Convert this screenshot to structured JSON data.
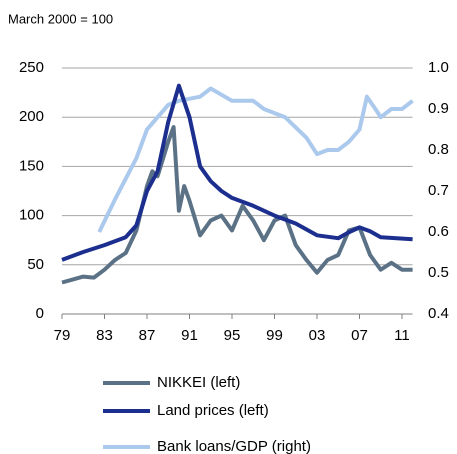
{
  "chart_data": {
    "type": "line",
    "title": "March 2000 = 100",
    "xlim": [
      1979,
      2012
    ],
    "xticks": [
      {
        "value": 1979,
        "label": "79"
      },
      {
        "value": 1983,
        "label": "83"
      },
      {
        "value": 1987,
        "label": "87"
      },
      {
        "value": 1991,
        "label": "91"
      },
      {
        "value": 1995,
        "label": "95"
      },
      {
        "value": 1999,
        "label": "99"
      },
      {
        "value": 2003,
        "label": "03"
      },
      {
        "value": 2007,
        "label": "07"
      },
      {
        "value": 2011,
        "label": "11"
      }
    ],
    "ylim": [
      0,
      250
    ],
    "yticks": [
      0,
      50,
      100,
      150,
      200,
      250
    ],
    "y2lim": [
      0.4,
      1.0
    ],
    "y2ticks": [
      0.4,
      0.5,
      0.6,
      0.7,
      0.8,
      0.9,
      {
        "value": 1.0,
        "label": "1.0"
      }
    ],
    "grid": true,
    "series": [
      {
        "name": "NIKKEI (left)",
        "color": "#5b7286",
        "x": [
          1979,
          1980,
          1981,
          1982,
          1983,
          1984,
          1985,
          1986,
          1987,
          1987.5,
          1988,
          1989,
          1989.5,
          1990,
          1990.5,
          1991,
          1992,
          1993,
          1994,
          1995,
          1996,
          1997,
          1998,
          1999,
          2000,
          2001,
          2002,
          2003,
          2004,
          2005,
          2006,
          2007,
          2008,
          2009,
          2010,
          2011,
          2012
        ],
        "values": [
          32,
          35,
          38,
          37,
          45,
          55,
          62,
          85,
          130,
          145,
          140,
          175,
          190,
          105,
          130,
          115,
          80,
          95,
          100,
          85,
          110,
          95,
          75,
          95,
          100,
          70,
          55,
          42,
          55,
          60,
          85,
          88,
          60,
          45,
          52,
          45,
          45
        ]
      },
      {
        "name": "Land prices (left)",
        "color": "#1c2f8f",
        "x": [
          1979,
          1981,
          1983,
          1985,
          1986,
          1987,
          1988,
          1989,
          1990,
          1991,
          1992,
          1993,
          1994,
          1995,
          1997,
          1999,
          2001,
          2003,
          2005,
          2006,
          2007,
          2008,
          2009,
          2012
        ],
        "values": [
          55,
          63,
          70,
          78,
          90,
          125,
          145,
          195,
          232,
          200,
          150,
          135,
          125,
          118,
          110,
          100,
          92,
          80,
          77,
          83,
          88,
          84,
          78,
          76
        ]
      },
      {
        "name": "Bank loans/GDP (right)",
        "color": "#abc9ec",
        "axis": "y2",
        "x": [
          1982.5,
          1984,
          1986,
          1987,
          1988,
          1989,
          1990,
          1992,
          1993,
          1995,
          1997,
          1998,
          2000,
          2002,
          2003,
          2004,
          2005,
          2006,
          2007,
          2007.7,
          2008.5,
          2009,
          2010,
          2011,
          2012
        ],
        "values": [
          0.6,
          0.68,
          0.78,
          0.85,
          0.88,
          0.91,
          0.92,
          0.93,
          0.95,
          0.92,
          0.92,
          0.9,
          0.88,
          0.83,
          0.79,
          0.8,
          0.8,
          0.82,
          0.85,
          0.93,
          0.9,
          0.88,
          0.9,
          0.9,
          0.92
        ]
      }
    ]
  }
}
